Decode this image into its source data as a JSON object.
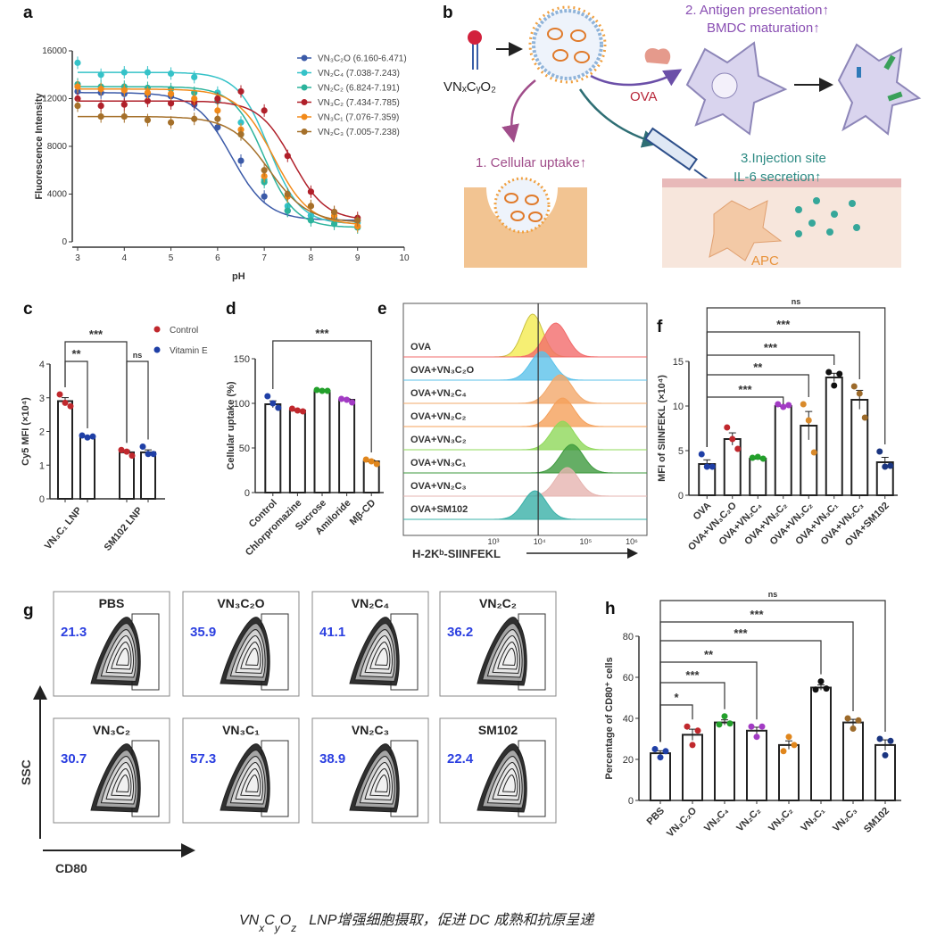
{
  "panel_labels": {
    "a": "a",
    "b": "b",
    "c": "c",
    "d": "d",
    "e": "e",
    "f": "f",
    "g": "g",
    "h": "h"
  },
  "diagram_b": {
    "lipid_label": "VNₓCᵧO₂",
    "step2_line1": "2. Antigen presentation↑",
    "step2_line2": "BMDC maturation↑",
    "ova_label": "OVA",
    "step1": "1. Cellular uptake↑",
    "step3_line1": "3.Injection site",
    "step3_line2": "IL-6 secretion↑",
    "apc_label": "APC",
    "colors": {
      "purple": "#8a4fb3",
      "teal": "#2e8b84",
      "red": "#b8283a",
      "orange": "#e3a35d"
    }
  },
  "caption": {
    "prefix": "VN",
    "sub_x": "x",
    "c": "C",
    "sub_y": "y",
    "o": "O",
    "sub_z": "z",
    "rest": "LNP增强细胞摄取，促进 DC 成熟和抗原呈递"
  },
  "chart_data": [
    {
      "id": "a",
      "type": "line",
      "title": "",
      "xlabel": "pH",
      "ylabel": "Fluorescence Intensity",
      "xlim": [
        3,
        10
      ],
      "ylim": [
        0,
        16000
      ],
      "xticks": [
        3,
        4,
        5,
        6,
        7,
        8,
        9,
        10
      ],
      "yticks": [
        0,
        4000,
        8000,
        12000,
        16000
      ],
      "x": [
        3,
        3.5,
        4,
        4.5,
        5,
        5.5,
        6,
        6.5,
        7,
        7.5,
        8,
        8.5,
        9
      ],
      "legend_position": "top-right",
      "series": [
        {
          "name": "VN₃C₂O (6.160-6.471)",
          "color": "#3b5aa8",
          "marker": "diamond",
          "fit": {
            "top": 12500,
            "bottom": 1800,
            "ec50": 6.3,
            "slope": 2.6
          },
          "values": [
            12600,
            12500,
            12400,
            12300,
            12200,
            11500,
            9600,
            6800,
            3800,
            2600,
            2200,
            2000,
            1800
          ]
        },
        {
          "name": "VN₂C₄ (7.038-7.243)",
          "color": "#35c2c8",
          "marker": "star",
          "fit": {
            "top": 14200,
            "bottom": 1500,
            "ec50": 7.1,
            "slope": 3
          },
          "values": [
            15000,
            14000,
            14200,
            14200,
            14100,
            13800,
            12500,
            10000,
            5200,
            3000,
            2200,
            1800,
            1600
          ]
        },
        {
          "name": "VN₂C₂ (6.824-7.191)",
          "color": "#2bb39c",
          "marker": "triangle",
          "fit": {
            "top": 13000,
            "bottom": 1200,
            "ec50": 7.0,
            "slope": 3
          },
          "values": [
            13200,
            13000,
            13000,
            12900,
            12800,
            12500,
            11800,
            9000,
            5000,
            2600,
            1800,
            1500,
            1200
          ]
        },
        {
          "name": "VN₃C₂ (7.434-7.785)",
          "color": "#b0202a",
          "marker": "plus",
          "fit": {
            "top": 11800,
            "bottom": 1800,
            "ec50": 7.6,
            "slope": 2.8
          },
          "values": [
            12000,
            11400,
            11500,
            11800,
            11600,
            11700,
            12000,
            12600,
            11000,
            7200,
            4200,
            2500,
            2000
          ]
        },
        {
          "name": "VN₃C₁ (7.076-7.359)",
          "color": "#f28a1a",
          "marker": "circle",
          "fit": {
            "top": 12800,
            "bottom": 1400,
            "ec50": 7.2,
            "slope": 2.6
          },
          "values": [
            13000,
            12800,
            12700,
            12500,
            12400,
            12000,
            11000,
            9400,
            5500,
            3800,
            3000,
            2200,
            1300
          ]
        },
        {
          "name": "VN₂C₃ (7.005-7.238)",
          "color": "#a5702a",
          "marker": "square",
          "fit": {
            "top": 10500,
            "bottom": 1600,
            "ec50": 7.1,
            "slope": 2.4
          },
          "values": [
            11400,
            10500,
            10500,
            10200,
            10000,
            10300,
            10300,
            9000,
            6000,
            4000,
            3000,
            2500,
            1800
          ]
        }
      ]
    },
    {
      "id": "c",
      "type": "bar",
      "ylabel": "Cy5 MFI (×10⁴)",
      "ylim": [
        0,
        4
      ],
      "yticks": [
        0,
        1,
        2,
        3,
        4
      ],
      "groups": [
        "VN₃C₁ LNP",
        "SM102 LNP"
      ],
      "legend": [
        {
          "name": "Control",
          "color": "#c0282d"
        },
        {
          "name": "Vitamin E",
          "color": "#1f3fa6"
        }
      ],
      "legend_position": "top-right",
      "bars": [
        {
          "group": "VN₃C₁ LNP",
          "series": "Control",
          "mean": 2.9,
          "points": [
            3.1,
            2.85,
            2.75
          ],
          "color": "#c0282d"
        },
        {
          "group": "VN₃C₁ LNP",
          "series": "Vitamin E",
          "mean": 1.85,
          "points": [
            1.88,
            1.82,
            1.85
          ],
          "color": "#1f3fa6"
        },
        {
          "group": "SM102 LNP",
          "series": "Control",
          "mean": 1.38,
          "points": [
            1.45,
            1.4,
            1.28
          ],
          "color": "#c0282d"
        },
        {
          "group": "SM102 LNP",
          "series": "Vitamin E",
          "mean": 1.38,
          "points": [
            1.55,
            1.33,
            1.33
          ],
          "color": "#1f3fa6"
        }
      ],
      "comparisons": [
        {
          "from": 0,
          "to": 2,
          "label": "***"
        },
        {
          "from": 0,
          "to": 1,
          "label": "**"
        },
        {
          "from": 2,
          "to": 3,
          "label": "ns"
        }
      ]
    },
    {
      "id": "d",
      "type": "bar",
      "ylabel": "Cellular uptake (%)",
      "ylim": [
        0,
        150
      ],
      "yticks": [
        0,
        50,
        100,
        150
      ],
      "categories": [
        "Control",
        "Chlorpromazine",
        "Sucrose",
        "Amiloride",
        "Mβ-CD"
      ],
      "bars": [
        {
          "mean": 99,
          "points": [
            108,
            100,
            95
          ],
          "color": "#1f3fa6"
        },
        {
          "mean": 92,
          "points": [
            94,
            92,
            91
          ],
          "color": "#c0282d"
        },
        {
          "mean": 114,
          "points": [
            115,
            114,
            114
          ],
          "color": "#23a02b"
        },
        {
          "mean": 104,
          "points": [
            105,
            104,
            101
          ],
          "color": "#a23bc4"
        },
        {
          "mean": 35,
          "points": [
            37,
            35,
            32
          ],
          "color": "#e0861c"
        }
      ],
      "comparisons": [
        {
          "from": 0,
          "to": 4,
          "label": "***"
        }
      ]
    },
    {
      "id": "e",
      "type": "histogram",
      "xlabel": "H-2Kᵇ-SIINFEKL",
      "xticks": [
        "10³",
        "10⁴",
        "10⁵",
        "10⁶"
      ],
      "xlim_log10": [
        3,
        6
      ],
      "reference_line_log10": 3.97,
      "rows": [
        {
          "label": "OVA",
          "peak_log10": 4.35,
          "color": "#f26b6b",
          "ref_peak_log10": 3.85,
          "ref_color": "#f4ec5a"
        },
        {
          "label": "OVA+VN₃C₂O",
          "peak_log10": 4.05,
          "color": "#5bc2ea"
        },
        {
          "label": "OVA+VN₂C₄",
          "peak_log10": 4.45,
          "color": "#f2a86a"
        },
        {
          "label": "OVA+VN₂C₂",
          "peak_log10": 4.5,
          "color": "#f5a05a"
        },
        {
          "label": "OVA+VN₃C₂",
          "peak_log10": 4.5,
          "color": "#8fd85a"
        },
        {
          "label": "OVA+VN₃C₁",
          "peak_log10": 4.7,
          "color": "#3e9a3e"
        },
        {
          "label": "OVA+VN₂C₃",
          "peak_log10": 4.6,
          "color": "#e6b4b0"
        },
        {
          "label": "OVA+SM102",
          "peak_log10": 3.9,
          "color": "#3ab0a8"
        }
      ]
    },
    {
      "id": "f",
      "type": "bar",
      "ylabel": "MFI of SIINFEKL (×10⁴)",
      "ylim": [
        0,
        15
      ],
      "yticks": [
        0,
        5,
        10,
        15
      ],
      "categories": [
        "OVA",
        "OVA+VN₃C₂O",
        "OVA+VN₂C₄",
        "OVA+VN₂C₂",
        "OVA+VN₃C₂",
        "OVA+VN₃C₁",
        "OVA+VN₂C₃",
        "OVA+SM102"
      ],
      "bars": [
        {
          "mean": 3.5,
          "points": [
            4.6,
            3.2,
            3.2
          ],
          "color": "#1f3fa6"
        },
        {
          "mean": 6.3,
          "points": [
            7.6,
            6.3,
            5.2
          ],
          "color": "#c0282d"
        },
        {
          "mean": 4.1,
          "points": [
            4.2,
            4.3,
            4.1
          ],
          "color": "#23a02b"
        },
        {
          "mean": 10.0,
          "points": [
            10.2,
            9.9,
            10.1
          ],
          "color": "#a23bc4"
        },
        {
          "mean": 7.8,
          "points": [
            10.2,
            8.4,
            4.8
          ],
          "color": "#d98a2b"
        },
        {
          "mean": 13.2,
          "points": [
            13.8,
            12.3,
            13.6
          ],
          "color": "#111111"
        },
        {
          "mean": 10.7,
          "points": [
            12.2,
            11.4,
            8.7
          ],
          "color": "#9c6a2a"
        },
        {
          "mean": 3.7,
          "points": [
            4.9,
            3.2,
            3.3
          ],
          "color": "#1a3580"
        }
      ],
      "comparisons": [
        {
          "from": 0,
          "to": 3,
          "label": "***"
        },
        {
          "from": 0,
          "to": 4,
          "label": "**"
        },
        {
          "from": 0,
          "to": 5,
          "label": "***"
        },
        {
          "from": 0,
          "to": 6,
          "label": "***"
        },
        {
          "from": 0,
          "to": 7,
          "label": "ns"
        }
      ]
    },
    {
      "id": "g",
      "type": "flow-contour",
      "xlabel": "CD80",
      "ylabel": "SSC",
      "plots": [
        {
          "label": "PBS",
          "value": "21.3"
        },
        {
          "label": "VN₃C₂O",
          "value": "35.9"
        },
        {
          "label": "VN₂C₄",
          "value": "41.1"
        },
        {
          "label": "VN₂C₂",
          "value": "36.2"
        },
        {
          "label": "VN₃C₂",
          "value": "30.7"
        },
        {
          "label": "VN₃C₁",
          "value": "57.3"
        },
        {
          "label": "VN₂C₃",
          "value": "38.9"
        },
        {
          "label": "SM102",
          "value": "22.4"
        }
      ],
      "value_color": "#2b3fe0"
    },
    {
      "id": "h",
      "type": "bar",
      "ylabel": "Percentage of CD80⁺ cells",
      "ylim": [
        0,
        80
      ],
      "yticks": [
        0,
        20,
        40,
        60,
        80
      ],
      "categories": [
        "PBS",
        "VN₃C₂O",
        "VN₂C₄",
        "VN₂C₂",
        "VN₃C₂",
        "VN₃C₁",
        "VN₂C₃",
        "SM102"
      ],
      "bars": [
        {
          "mean": 23,
          "points": [
            25,
            21,
            24
          ],
          "color": "#1f3fa6"
        },
        {
          "mean": 32,
          "points": [
            36,
            27,
            34
          ],
          "color": "#c0282d"
        },
        {
          "mean": 38,
          "points": [
            37,
            41,
            37.5
          ],
          "color": "#23a02b"
        },
        {
          "mean": 34,
          "points": [
            36,
            31,
            36
          ],
          "color": "#a23bc4"
        },
        {
          "mean": 27,
          "points": [
            24,
            31,
            27
          ],
          "color": "#e0861c"
        },
        {
          "mean": 55,
          "points": [
            54,
            58,
            54.5
          ],
          "color": "#111111"
        },
        {
          "mean": 38,
          "points": [
            40,
            35,
            39
          ],
          "color": "#9c6a2a"
        },
        {
          "mean": 27,
          "points": [
            30,
            22,
            29
          ],
          "color": "#1a3580"
        }
      ],
      "comparisons": [
        {
          "from": 0,
          "to": 1,
          "label": "*"
        },
        {
          "from": 0,
          "to": 2,
          "label": "***"
        },
        {
          "from": 0,
          "to": 3,
          "label": "**"
        },
        {
          "from": 0,
          "to": 5,
          "label": "***"
        },
        {
          "from": 0,
          "to": 6,
          "label": "***"
        },
        {
          "from": 0,
          "to": 7,
          "label": "ns"
        }
      ]
    }
  ]
}
